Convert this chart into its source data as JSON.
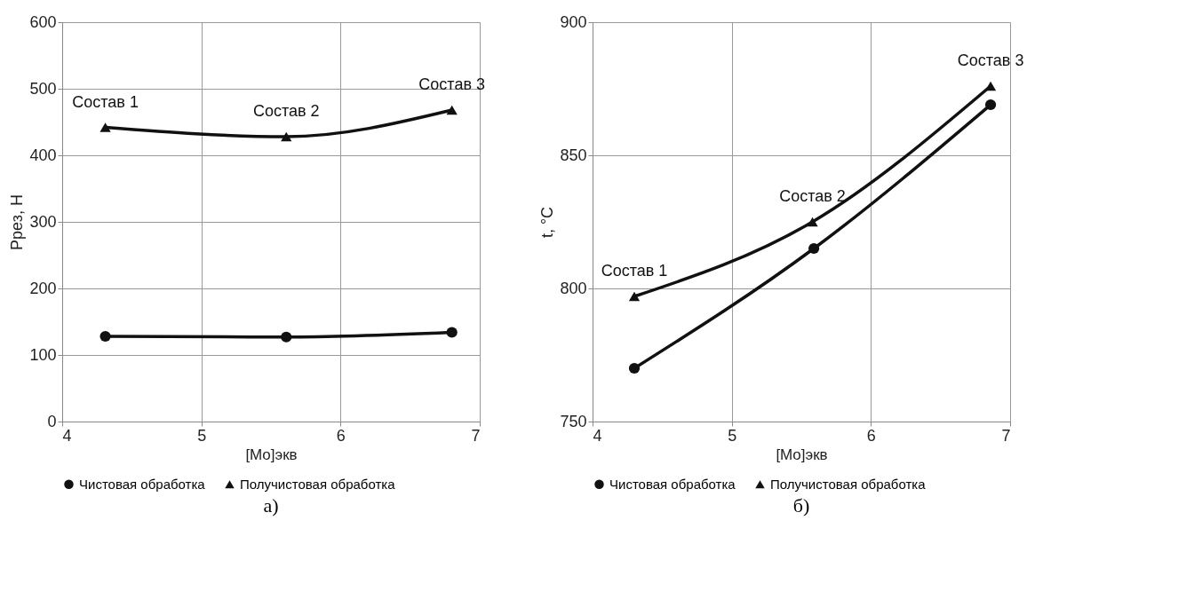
{
  "chart_data": [
    {
      "type": "line",
      "xlabel": "[Mo]экв",
      "ylabel": "Pрез, Н",
      "xlim": [
        4,
        7
      ],
      "xticks": [
        4,
        5,
        6,
        7
      ],
      "ylim": [
        0,
        600
      ],
      "yticks": [
        0,
        100,
        200,
        300,
        400,
        500,
        600
      ],
      "grid": true,
      "legend": "bottom",
      "line_style": "solid",
      "series": [
        {
          "name": "Чистовая обработка",
          "color": "#111111",
          "marker": "circle",
          "x": [
            4.31,
            5.61,
            6.8
          ],
          "values": [
            128,
            127,
            134
          ]
        },
        {
          "name": "Получистовая обработка",
          "color": "#111111",
          "marker": "triangle",
          "x": [
            4.31,
            5.61,
            6.8
          ],
          "values": [
            442,
            428,
            468
          ]
        }
      ],
      "annotations": [
        {
          "text": "Состав 1",
          "x": 4.31,
          "y": 442
        },
        {
          "text": "Состав 2",
          "x": 5.61,
          "y": 428
        },
        {
          "text": "Состав 3",
          "x": 6.8,
          "y": 468
        },
        "а)"
      ]
    },
    {
      "type": "line",
      "xlabel": "[Mo]экв",
      "ylabel": "t, °C",
      "xlim": [
        4,
        7
      ],
      "xticks": [
        4,
        5,
        6,
        7
      ],
      "ylim": [
        750,
        900
      ],
      "yticks": [
        750,
        800,
        850,
        900
      ],
      "grid": true,
      "legend": "bottom",
      "line_style": "solid",
      "series": [
        {
          "name": "Чистовая обработка",
          "color": "#111111",
          "marker": "circle",
          "x": [
            4.3,
            5.59,
            6.86
          ],
          "values": [
            770,
            815,
            869
          ]
        },
        {
          "name": "Получистовая обработка",
          "color": "#111111",
          "marker": "triangle",
          "x": [
            4.3,
            5.58,
            6.86
          ],
          "values": [
            797,
            825,
            876
          ]
        }
      ],
      "annotations": [
        {
          "text": "Состав 1",
          "x": 4.3,
          "y": 797
        },
        {
          "text": "Состав 2",
          "x": 5.58,
          "y": 825
        },
        {
          "text": "Состав 3",
          "x": 6.86,
          "y": 876
        },
        "б)"
      ]
    }
  ]
}
